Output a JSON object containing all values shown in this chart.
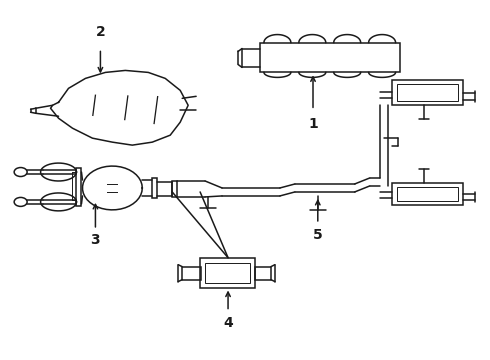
{
  "bg_color": "#ffffff",
  "lc": "#1a1a1a",
  "lw": 1.1,
  "lw_thin": 0.7,
  "label_fs": 10,
  "fig_w": 4.9,
  "fig_h": 3.6,
  "dpi": 100
}
